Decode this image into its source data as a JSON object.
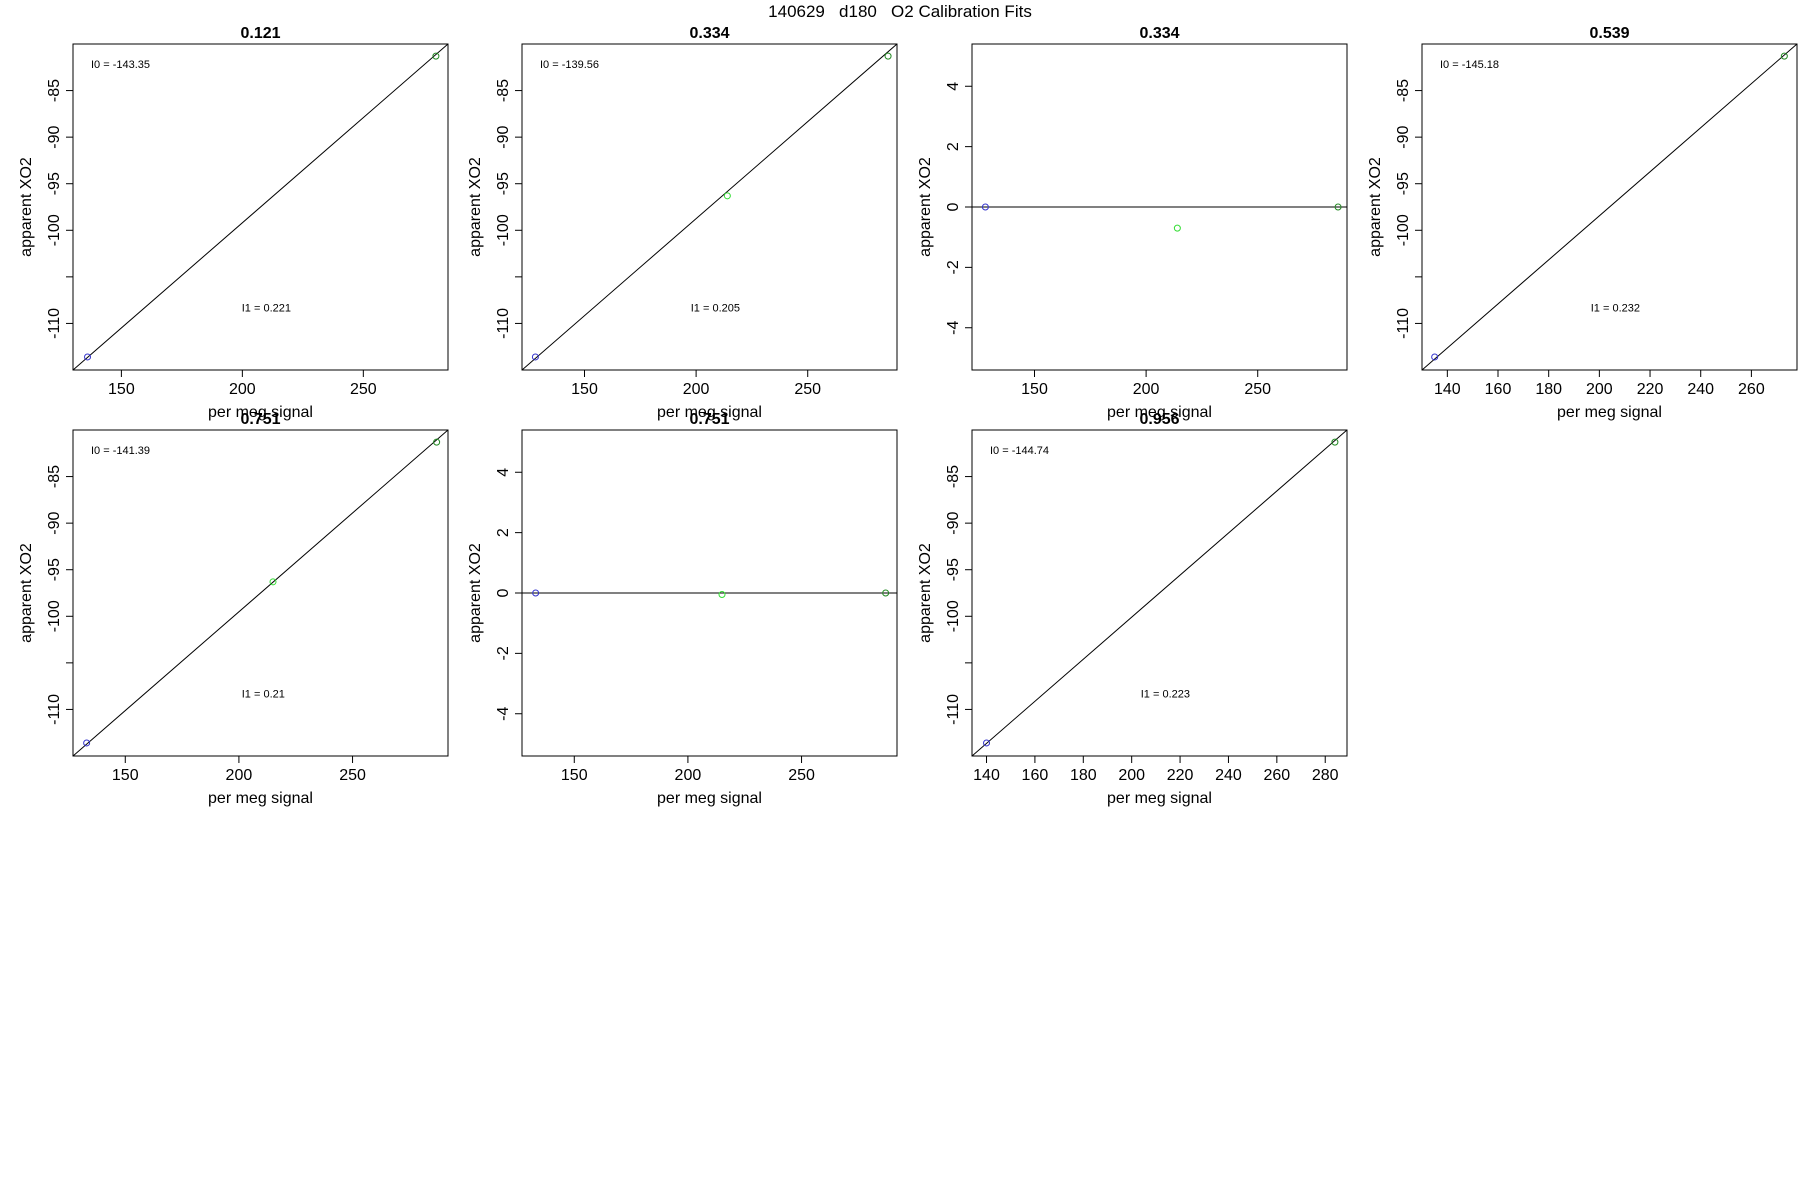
{
  "figure": {
    "title": "140629   d180   O2 Calibration Fits"
  },
  "chart_data": [
    {
      "type": "scatter",
      "title": "0.121",
      "xlabel": "per meg signal",
      "ylabel": "apparent XO2",
      "xlim": [
        130,
        285
      ],
      "ylim": [
        -115,
        -80
      ],
      "xticks": [
        150,
        200,
        250
      ],
      "yticks": [
        -110,
        -100,
        -95,
        -90,
        -85
      ],
      "yminor": [
        -105
      ],
      "points": [
        {
          "x": 136,
          "y": -113.6,
          "color": "#3333cc"
        },
        {
          "x": 280,
          "y": -81.3,
          "color": "#228822"
        }
      ],
      "fit_line": {
        "x0": 130,
        "y0": -115.0,
        "x1": 285,
        "y1": -80.0
      },
      "annotations": [
        {
          "text": "I0 =  -143.35",
          "pos": "top-left"
        },
        {
          "text": "I1 =  0.221",
          "pos": "bottom-center"
        }
      ]
    },
    {
      "type": "scatter",
      "title": "0.334",
      "xlabel": "per meg signal",
      "ylabel": "apparent XO2",
      "xlim": [
        122,
        290
      ],
      "ylim": [
        -115,
        -80
      ],
      "xticks": [
        150,
        200,
        250
      ],
      "yticks": [
        -110,
        -100,
        -95,
        -90,
        -85
      ],
      "yminor": [
        -105
      ],
      "points": [
        {
          "x": 128,
          "y": -113.6,
          "color": "#3333cc"
        },
        {
          "x": 214,
          "y": -96.3,
          "color": "#33dd33"
        },
        {
          "x": 286,
          "y": -81.3,
          "color": "#228822"
        }
      ],
      "fit_line": {
        "x0": 122,
        "y0": -115.0,
        "x1": 290,
        "y1": -80.0
      },
      "annotations": [
        {
          "text": "I0 =  -139.56",
          "pos": "top-left"
        },
        {
          "text": "I1 =  0.205",
          "pos": "bottom-center"
        }
      ]
    },
    {
      "type": "scatter",
      "title": "0.334",
      "xlabel": "per meg signal",
      "ylabel": "apparent XO2",
      "xlim": [
        122,
        290
      ],
      "ylim": [
        -5.4,
        5.4
      ],
      "xticks": [
        150,
        200,
        250
      ],
      "yticks": [
        -4,
        -2,
        0,
        2,
        4
      ],
      "yminor": [],
      "points": [
        {
          "x": 128,
          "y": 0,
          "color": "#3333cc"
        },
        {
          "x": 214,
          "y": -0.7,
          "color": "#33dd33"
        },
        {
          "x": 286,
          "y": 0,
          "color": "#228822"
        }
      ],
      "fit_line": {
        "x0": 122,
        "y0": 0,
        "x1": 290,
        "y1": 0
      },
      "annotations": []
    },
    {
      "type": "scatter",
      "title": "0.539",
      "xlabel": "per meg signal",
      "ylabel": "apparent XO2",
      "xlim": [
        130,
        278
      ],
      "ylim": [
        -115,
        -80
      ],
      "xticks": [
        140,
        160,
        180,
        200,
        220,
        240,
        260
      ],
      "yticks": [
        -110,
        -100,
        -95,
        -90,
        -85
      ],
      "yminor": [
        -105
      ],
      "points": [
        {
          "x": 135,
          "y": -113.6,
          "color": "#3333cc"
        },
        {
          "x": 273,
          "y": -81.3,
          "color": "#228822"
        }
      ],
      "fit_line": {
        "x0": 130,
        "y0": -115.0,
        "x1": 278,
        "y1": -80.0
      },
      "annotations": [
        {
          "text": "I0 =  -145.18",
          "pos": "top-left"
        },
        {
          "text": "I1 =  0.232",
          "pos": "bottom-center"
        }
      ]
    },
    {
      "type": "scatter",
      "title": "0.751",
      "xlabel": "per meg signal",
      "ylabel": "apparent XO2",
      "xlim": [
        127,
        292
      ],
      "ylim": [
        -115,
        -80
      ],
      "xticks": [
        150,
        200,
        250
      ],
      "yticks": [
        -110,
        -100,
        -95,
        -90,
        -85
      ],
      "yminor": [
        -105
      ],
      "points": [
        {
          "x": 133,
          "y": -113.6,
          "color": "#3333cc"
        },
        {
          "x": 215,
          "y": -96.3,
          "color": "#33dd33"
        },
        {
          "x": 287,
          "y": -81.3,
          "color": "#228822"
        }
      ],
      "fit_line": {
        "x0": 127,
        "y0": -115.0,
        "x1": 292,
        "y1": -80.0
      },
      "annotations": [
        {
          "text": "I0 =  -141.39",
          "pos": "top-left"
        },
        {
          "text": "I1 =  0.21",
          "pos": "bottom-center"
        }
      ]
    },
    {
      "type": "scatter",
      "title": "0.751",
      "xlabel": "per meg signal",
      "ylabel": "apparent XO2",
      "xlim": [
        127,
        292
      ],
      "ylim": [
        -5.4,
        5.4
      ],
      "xticks": [
        150,
        200,
        250
      ],
      "yticks": [
        -4,
        -2,
        0,
        2,
        4
      ],
      "yminor": [],
      "points": [
        {
          "x": 133,
          "y": 0,
          "color": "#3333cc"
        },
        {
          "x": 215,
          "y": -0.05,
          "color": "#33dd33"
        },
        {
          "x": 287,
          "y": 0,
          "color": "#228822"
        }
      ],
      "fit_line": {
        "x0": 127,
        "y0": 0,
        "x1": 292,
        "y1": 0
      },
      "annotations": []
    },
    {
      "type": "scatter",
      "title": "0.956",
      "xlabel": "per meg signal",
      "ylabel": "apparent XO2",
      "xlim": [
        134,
        289
      ],
      "ylim": [
        -115,
        -80
      ],
      "xticks": [
        140,
        160,
        180,
        200,
        220,
        240,
        260,
        280
      ],
      "yticks": [
        -110,
        -100,
        -95,
        -90,
        -85
      ],
      "yminor": [
        -105
      ],
      "points": [
        {
          "x": 140,
          "y": -113.6,
          "color": "#3333cc"
        },
        {
          "x": 284,
          "y": -81.3,
          "color": "#228822"
        }
      ],
      "fit_line": {
        "x0": 134,
        "y0": -115.0,
        "x1": 289,
        "y1": -80.0
      },
      "annotations": [
        {
          "text": "I0 =  -144.74",
          "pos": "top-left"
        },
        {
          "text": "I1 =  0.223",
          "pos": "bottom-center"
        }
      ]
    }
  ]
}
